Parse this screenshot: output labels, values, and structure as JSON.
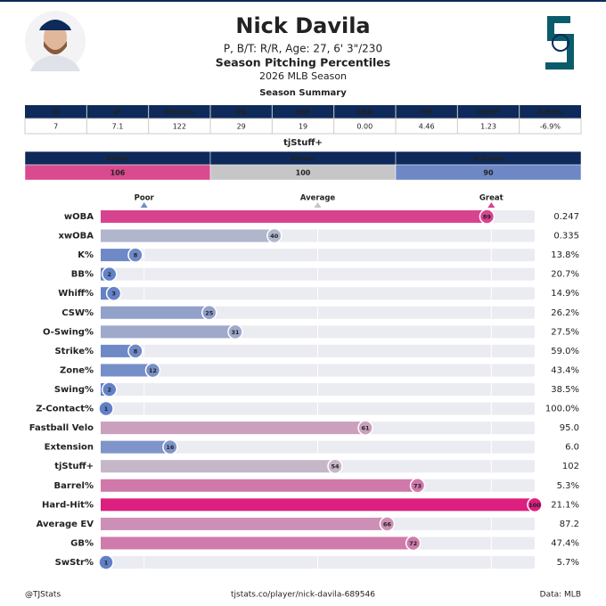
{
  "header": {
    "name": "Nick Davila",
    "subtitle": "P, B/T: R/R, Age: 27, 6' 3\"/230",
    "title": "Season Pitching Percentiles",
    "season": "2026 MLB Season"
  },
  "season_summary": {
    "label": "Season Summary",
    "columns": [
      "G",
      "IP",
      "Pitches",
      "PA",
      "BIP",
      "ERA",
      "FIP",
      "WHIP",
      "K-BB%"
    ],
    "rows": [
      [
        "7",
        "7.1",
        "122",
        "29",
        "19",
        "0.00",
        "4.46",
        "1.23",
        "-6.9%"
      ]
    ]
  },
  "tjstuff": {
    "label": "tjStuff+",
    "columns": [
      "Slider",
      "Sinker",
      "4-Seam"
    ],
    "values": [
      "106",
      "100",
      "90"
    ],
    "colors": [
      "#d94a8f",
      "#c6c6c8",
      "#6e88c6"
    ]
  },
  "chart_data": {
    "type": "bar",
    "orientation": "horizontal",
    "categories": [
      "wOBA",
      "xwOBA",
      "K%",
      "BB%",
      "Whiff%",
      "CSW%",
      "O-Swing%",
      "Strike%",
      "Zone%",
      "Swing%",
      "Z-Contact%",
      "Fastball Velo",
      "Extension",
      "tjStuff+",
      "Barrel%",
      "Hard-Hit%",
      "Average EV",
      "GB%",
      "SwStr%"
    ],
    "values": [
      89,
      40,
      8,
      2,
      3,
      25,
      31,
      8,
      12,
      2,
      1,
      61,
      16,
      54,
      73,
      100,
      66,
      72,
      1
    ],
    "stat_values": [
      "0.247",
      "0.335",
      "13.8%",
      "20.7%",
      "14.9%",
      "26.2%",
      "27.5%",
      "59.0%",
      "43.4%",
      "38.5%",
      "100.0%",
      "95.0",
      "6.0",
      "102",
      "5.3%",
      "21.1%",
      "87.2",
      "47.4%",
      "5.7%"
    ],
    "xlim": [
      0,
      100
    ],
    "xticks": [
      {
        "value": 10,
        "label": "Poor"
      },
      {
        "value": 50,
        "label": "Average"
      },
      {
        "value": 90,
        "label": "Great"
      }
    ],
    "colormap": [
      "#5f7ec6",
      "#c4c4ce",
      "#dd1f7f"
    ],
    "grid": true
  },
  "footer": {
    "left": "@TJStats",
    "center": "tjstats.co/player/nick-davila-689546",
    "right": "Data: MLB"
  }
}
